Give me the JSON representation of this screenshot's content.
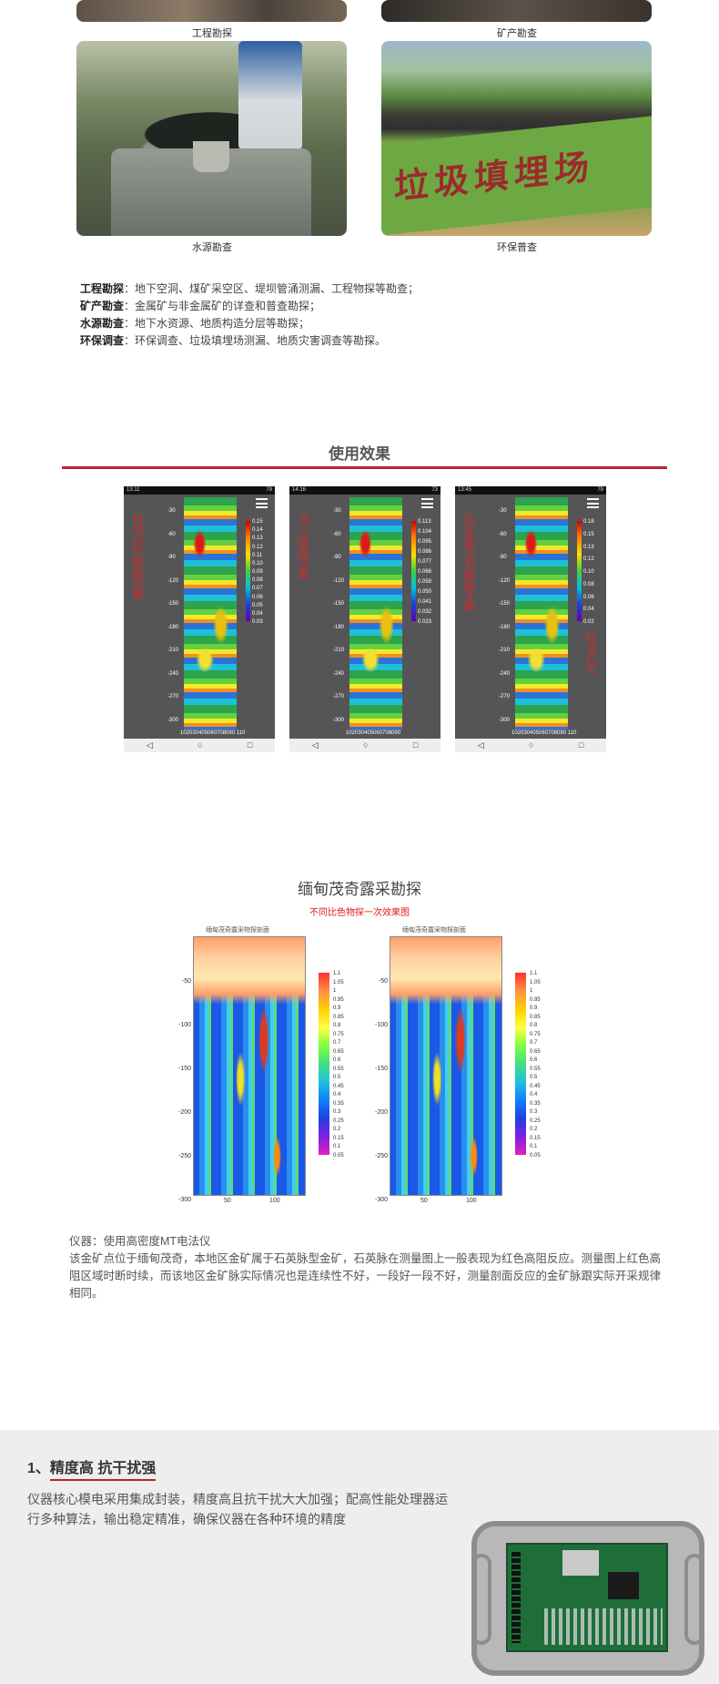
{
  "gallery": {
    "captions": [
      "工程勘探",
      "矿产勘查",
      "水源勘查",
      "环保普查"
    ],
    "env_photo_text": "垃圾填埋场"
  },
  "applications": [
    {
      "term": "工程勘探",
      "text": "：地下空洞、煤矿采空区、堤坝管涌测漏、工程物探等勘查；"
    },
    {
      "term": "矿产勘查",
      "text": "：金属矿与非金属矿的详查和普查勘探；"
    },
    {
      "term": "水源勘查",
      "text": "：地下水资源、地质构造分层等勘探；"
    },
    {
      "term": "环保调查",
      "text": "：环保调查、垃圾填埋场测漏、地质灾害调查等勘探。"
    }
  ],
  "results": {
    "title": "使用效果",
    "phones": [
      {
        "time": "13:11",
        "battery": "79",
        "label": "第2剖面7月16日",
        "label2": "",
        "colorbar": [
          "0.15",
          "0.14",
          "0.13",
          "0.12",
          "0.11",
          "0.10",
          "0.09",
          "0.08",
          "0.07",
          "0.06",
          "0.05",
          "0.04",
          "0.03"
        ],
        "y_ticks": [
          "-30",
          "-60",
          "-90",
          "-120",
          "-150",
          "-180",
          "-210",
          "-240",
          "-270",
          "-300"
        ],
        "x_ticks": "102030405060708090    110"
      },
      {
        "time": "14:16",
        "battery": "73",
        "label": "第3剖面7-18",
        "label2": "",
        "colorbar": [
          "0.113",
          "0.104",
          "0.095",
          "0.086",
          "0.077",
          "0.068",
          "0.059",
          "0.050",
          "0.041",
          "0.032",
          "0.023"
        ],
        "y_ticks": [
          "-30",
          "-60",
          "-90",
          "-120",
          "-150",
          "-180",
          "-210",
          "-240",
          "-270",
          "-300"
        ],
        "x_ticks": "102030405060708090"
      },
      {
        "time": "13:45",
        "battery": "79",
        "label": "第4剖面250度方位",
        "label2": "7月18日",
        "colorbar": [
          "0.18",
          "0.15",
          "0.13",
          "0.12",
          "0.10",
          "0.08",
          "0.06",
          "0.04",
          "0.02"
        ],
        "y_ticks": [
          "-30",
          "-60",
          "-90",
          "-120",
          "-150",
          "-180",
          "-210",
          "-240",
          "-270",
          "-300"
        ],
        "x_ticks": "102030405060708090    110"
      }
    ]
  },
  "mt_survey": {
    "title": "缅甸茂奇露采勘探",
    "subtitle": "不同比色物探一次效果图",
    "plot_title": "缅甸茂奇露采物探剖面",
    "y_ticks": [
      "-50",
      "-100",
      "-150",
      "-200",
      "-250",
      "-300"
    ],
    "x_ticks": [
      "50",
      "100"
    ],
    "colorbar": [
      "1.1",
      "1.05",
      "1",
      "0.95",
      "0.9",
      "0.85",
      "0.8",
      "0.75",
      "0.7",
      "0.65",
      "0.6",
      "0.55",
      "0.5",
      "0.45",
      "0.4",
      "0.35",
      "0.3",
      "0.25",
      "0.2",
      "0.15",
      "0.1",
      "0.05"
    ],
    "instrument": "仪器：使用高密度MT电法仪",
    "note": "该金矿点位于缅甸茂奇，本地区金矿属于石英脉型金矿，石英脉在测量图上一般表现为红色高阻反应。测量图上红色高阻区域时断时续，而该地区金矿脉实际情况也是连续性不好，一段好一段不好，测量剖面反应的金矿脉跟实际开采规律相同。"
  },
  "feature": {
    "number": "1、",
    "title": "精度高 抗干扰强",
    "text": "仪器核心模电采用集成封装，精度高且抗干扰大大加强；配高性能处理器运行多种算法，输出稳定精准，确保仪器在各种环境的精度"
  }
}
